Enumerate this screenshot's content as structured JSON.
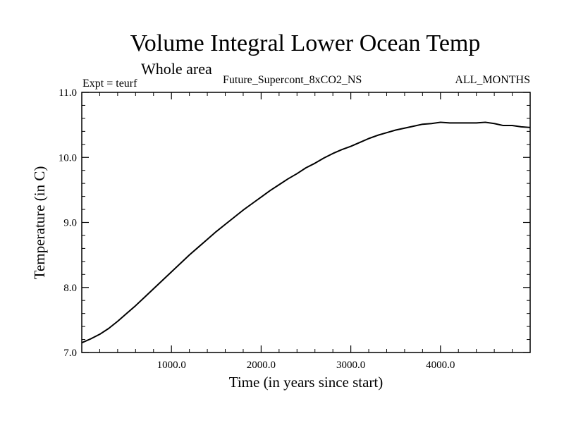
{
  "chart_data": {
    "type": "line",
    "title": "Volume Integral Lower Ocean Temp",
    "subtitle": "Whole area",
    "experiment_label": "Expt = teurf",
    "run_label": "Future_Supercont_8xCO2_NS",
    "period_label": "ALL_MONTHS",
    "xlabel": "Time (in years since start)",
    "ylabel": "Temperature (in C)",
    "xlim": [
      0,
      5000
    ],
    "ylim": [
      7.0,
      11.0
    ],
    "xticks": [
      1000,
      2000,
      3000,
      4000
    ],
    "xtick_labels": [
      "1000.0",
      "2000.0",
      "3000.0",
      "4000.0"
    ],
    "yticks": [
      7.0,
      8.0,
      9.0,
      10.0,
      11.0
    ],
    "ytick_labels": [
      "7.0",
      "8.0",
      "9.0",
      "10.0",
      "11.0"
    ],
    "grid": false,
    "series": [
      {
        "x": [
          0,
          100,
          200,
          300,
          400,
          500,
          600,
          700,
          800,
          900,
          1000,
          1100,
          1200,
          1300,
          1400,
          1500,
          1600,
          1700,
          1800,
          1900,
          2000,
          2100,
          2200,
          2300,
          2400,
          2500,
          2600,
          2700,
          2800,
          2900,
          3000,
          3100,
          3200,
          3300,
          3400,
          3500,
          3600,
          3700,
          3800,
          3900,
          4000,
          4100,
          4200,
          4300,
          4400,
          4500,
          4600,
          4700,
          4800,
          4900,
          5000
        ],
        "y": [
          7.15,
          7.21,
          7.28,
          7.37,
          7.48,
          7.6,
          7.72,
          7.85,
          7.98,
          8.11,
          8.24,
          8.37,
          8.5,
          8.62,
          8.74,
          8.86,
          8.97,
          9.08,
          9.19,
          9.29,
          9.39,
          9.49,
          9.58,
          9.67,
          9.75,
          9.84,
          9.91,
          9.99,
          10.06,
          10.12,
          10.17,
          10.23,
          10.29,
          10.34,
          10.38,
          10.42,
          10.45,
          10.48,
          10.51,
          10.52,
          10.54,
          10.53,
          10.53,
          10.53,
          10.53,
          10.54,
          10.52,
          10.49,
          10.49,
          10.47,
          10.46
        ]
      }
    ]
  }
}
